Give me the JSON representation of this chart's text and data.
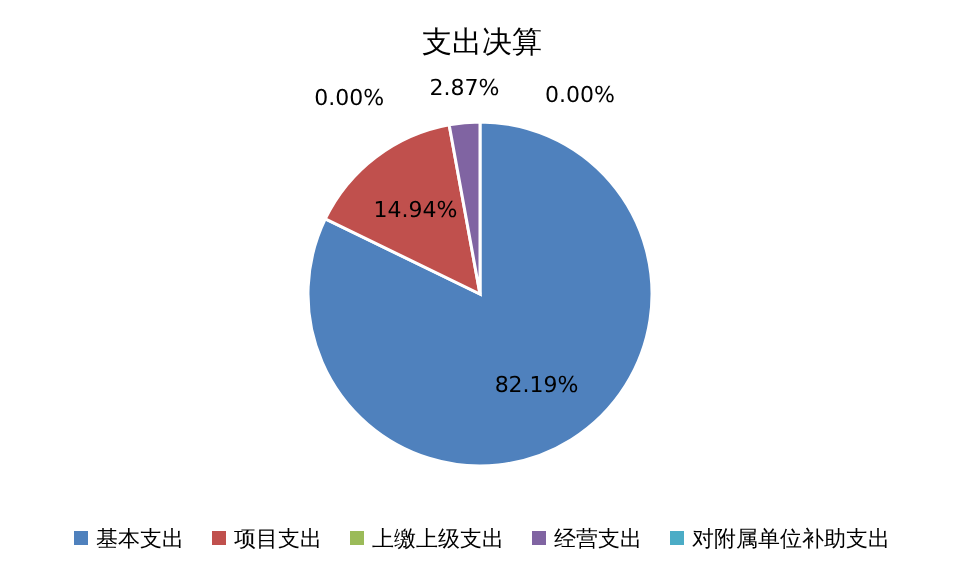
{
  "chart_data": {
    "type": "pie",
    "title": "支出决算",
    "categories": [
      "基本支出",
      "项目支出",
      "上缴上级支出",
      "经营支出",
      "对附属单位补助支出"
    ],
    "values": [
      82.19,
      14.94,
      0.0,
      2.87,
      0.0
    ],
    "value_labels": [
      "82.19%",
      "14.94%",
      "0.00%",
      "2.87%",
      "0.00%"
    ],
    "colors": [
      "#4f81bd",
      "#c0504d",
      "#9bbb59",
      "#8064a2",
      "#4bacc6"
    ],
    "legend": "bottom"
  }
}
